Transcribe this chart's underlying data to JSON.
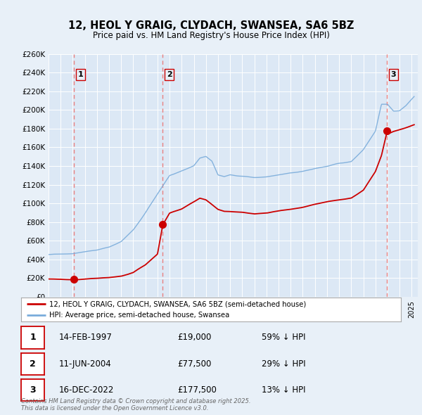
{
  "title": "12, HEOL Y GRAIG, CLYDACH, SWANSEA, SA6 5BZ",
  "subtitle": "Price paid vs. HM Land Registry's House Price Index (HPI)",
  "legend_property": "12, HEOL Y GRAIG, CLYDACH, SWANSEA, SA6 5BZ (semi-detached house)",
  "legend_hpi": "HPI: Average price, semi-detached house, Swansea",
  "footer": "Contains HM Land Registry data © Crown copyright and database right 2025.\nThis data is licensed under the Open Government Licence v3.0.",
  "transactions": [
    {
      "num": 1,
      "date": "14-FEB-1997",
      "price": 19000,
      "pct": "59%",
      "year_x": 1997.12
    },
    {
      "num": 2,
      "date": "11-JUN-2004",
      "price": 77500,
      "pct": "29%",
      "year_x": 2004.44
    },
    {
      "num": 3,
      "date": "16-DEC-2022",
      "price": 177500,
      "pct": "13%",
      "year_x": 2022.96
    }
  ],
  "property_color": "#cc0000",
  "hpi_color": "#7aacdb",
  "vline_color": "#e88080",
  "bg_color": "#e8f0f8",
  "plot_bg": "#dce8f5",
  "grid_color": "#ffffff",
  "ylim": [
    0,
    260000
  ],
  "xlim_start": 1995.0,
  "xlim_end": 2025.5,
  "hpi_keypoints": [
    [
      1995.0,
      45000
    ],
    [
      1996.0,
      46000
    ],
    [
      1997.0,
      47000
    ],
    [
      1998.0,
      49000
    ],
    [
      1999.0,
      51000
    ],
    [
      2000.0,
      54000
    ],
    [
      2001.0,
      60000
    ],
    [
      2002.0,
      72000
    ],
    [
      2003.0,
      90000
    ],
    [
      2004.0,
      110000
    ],
    [
      2004.5,
      120000
    ],
    [
      2005.0,
      130000
    ],
    [
      2006.0,
      135000
    ],
    [
      2007.0,
      140000
    ],
    [
      2007.5,
      148000
    ],
    [
      2008.0,
      150000
    ],
    [
      2008.5,
      145000
    ],
    [
      2009.0,
      130000
    ],
    [
      2009.5,
      128000
    ],
    [
      2010.0,
      130000
    ],
    [
      2011.0,
      128000
    ],
    [
      2012.0,
      127000
    ],
    [
      2013.0,
      128000
    ],
    [
      2014.0,
      130000
    ],
    [
      2015.0,
      133000
    ],
    [
      2016.0,
      135000
    ],
    [
      2017.0,
      138000
    ],
    [
      2018.0,
      140000
    ],
    [
      2019.0,
      143000
    ],
    [
      2020.0,
      145000
    ],
    [
      2021.0,
      158000
    ],
    [
      2022.0,
      178000
    ],
    [
      2022.5,
      207000
    ],
    [
      2023.0,
      207000
    ],
    [
      2023.5,
      200000
    ],
    [
      2024.0,
      200000
    ],
    [
      2024.5,
      205000
    ],
    [
      2025.2,
      215000
    ]
  ],
  "prop_keypoints": [
    [
      1995.0,
      19000
    ],
    [
      1997.12,
      19000
    ],
    [
      1998.0,
      19500
    ],
    [
      1999.0,
      20000
    ],
    [
      2000.0,
      21000
    ],
    [
      2001.0,
      22500
    ],
    [
      2002.0,
      26000
    ],
    [
      2003.0,
      34000
    ],
    [
      2003.5,
      40000
    ],
    [
      2004.0,
      46000
    ],
    [
      2004.44,
      77500
    ],
    [
      2005.0,
      90000
    ],
    [
      2006.0,
      95000
    ],
    [
      2007.0,
      103000
    ],
    [
      2007.5,
      107000
    ],
    [
      2008.0,
      105000
    ],
    [
      2008.5,
      100000
    ],
    [
      2009.0,
      95000
    ],
    [
      2009.5,
      93000
    ],
    [
      2010.0,
      93000
    ],
    [
      2011.0,
      92000
    ],
    [
      2012.0,
      90000
    ],
    [
      2013.0,
      91000
    ],
    [
      2014.0,
      93000
    ],
    [
      2015.0,
      95000
    ],
    [
      2016.0,
      97000
    ],
    [
      2017.0,
      100000
    ],
    [
      2018.0,
      103000
    ],
    [
      2019.0,
      105000
    ],
    [
      2020.0,
      107000
    ],
    [
      2021.0,
      115000
    ],
    [
      2022.0,
      135000
    ],
    [
      2022.5,
      152000
    ],
    [
      2022.96,
      177500
    ],
    [
      2023.0,
      175000
    ],
    [
      2023.5,
      178000
    ],
    [
      2024.0,
      180000
    ],
    [
      2024.5,
      182000
    ],
    [
      2025.2,
      185000
    ]
  ]
}
